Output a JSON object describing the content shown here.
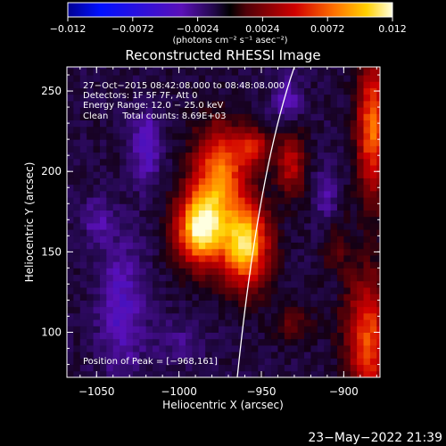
{
  "chart_data": {
    "type": "heatmap",
    "title": "Reconstructed RHESSI Image",
    "xlabel": "Heliocentric X (arcsec)",
    "ylabel": "Heliocentric Y (arcsec)",
    "xlim": [
      -1068,
      -878
    ],
    "ylim": [
      72,
      265
    ],
    "x_ticks": [
      {
        "value": -1050,
        "label": "−1050"
      },
      {
        "value": -1000,
        "label": "−1000"
      },
      {
        "value": -950,
        "label": "−950"
      },
      {
        "value": -900,
        "label": "−900"
      }
    ],
    "y_ticks": [
      {
        "value": 100,
        "label": "100"
      },
      {
        "value": 150,
        "label": "150"
      },
      {
        "value": 200,
        "label": "200"
      },
      {
        "value": 250,
        "label": "250"
      }
    ],
    "colorbar": {
      "range": [
        -0.012,
        0.012
      ],
      "ticks": [
        {
          "value": -0.012,
          "label": "−0.012"
        },
        {
          "value": -0.0072,
          "label": "−0.0072"
        },
        {
          "value": -0.0024,
          "label": "−0.0024"
        },
        {
          "value": 0.0024,
          "label": "0.0024"
        },
        {
          "value": 0.0072,
          "label": "0.0072"
        },
        {
          "value": 0.012,
          "label": "0.012"
        }
      ],
      "units_label": "(photons cm⁻² s⁻¹ asec⁻²)"
    },
    "annotations": [
      "27−Oct−2015 08:42:08.000 to 08:48:08.000",
      "Detectors: 1F 5F 7F, Att 0",
      "Energy Range: 12.0 − 25.0 keV",
      "Clean     Total counts: 8.69E+03"
    ],
    "peak_label": "Position of Peak = [−968,161]",
    "peak": [
      -968,
      161
    ],
    "sources": [
      {
        "x": -987,
        "y": 165,
        "sx": 10,
        "sy": 16,
        "amp": 0.0125
      },
      {
        "x": -960,
        "y": 155,
        "sx": 10,
        "sy": 18,
        "amp": 0.0115
      },
      {
        "x": -975,
        "y": 200,
        "sx": 11,
        "sy": 20,
        "amp": 0.0085
      },
      {
        "x": -955,
        "y": 215,
        "sx": 7,
        "sy": 8,
        "amp": 0.0055
      },
      {
        "x": -932,
        "y": 205,
        "sx": 6,
        "sy": 14,
        "amp": 0.005
      },
      {
        "x": -882,
        "y": 228,
        "sx": 7,
        "sy": 30,
        "amp": 0.0085
      },
      {
        "x": -885,
        "y": 95,
        "sx": 9,
        "sy": 28,
        "amp": 0.0075
      },
      {
        "x": -905,
        "y": 140,
        "sx": 6,
        "sy": 22,
        "amp": 0.0032
      },
      {
        "x": -930,
        "y": 105,
        "sx": 8,
        "sy": 8,
        "amp": 0.0025
      },
      {
        "x": -1035,
        "y": 115,
        "sx": 10,
        "sy": 30,
        "amp": -0.0032
      },
      {
        "x": -1020,
        "y": 215,
        "sx": 6,
        "sy": 16,
        "amp": -0.0035
      },
      {
        "x": -935,
        "y": 245,
        "sx": 6,
        "sy": 10,
        "amp": -0.003
      },
      {
        "x": -910,
        "y": 185,
        "sx": 5,
        "sy": 14,
        "amp": -0.0025
      },
      {
        "x": -905,
        "y": 130,
        "sx": 5,
        "sy": 12,
        "amp": -0.0028
      },
      {
        "x": -1050,
        "y": 170,
        "sx": 6,
        "sy": 10,
        "amp": -0.0022
      },
      {
        "x": -1000,
        "y": 95,
        "sx": 12,
        "sy": 10,
        "amp": -0.0015
      }
    ]
  },
  "footer_date": "23−May−2022 21:39"
}
